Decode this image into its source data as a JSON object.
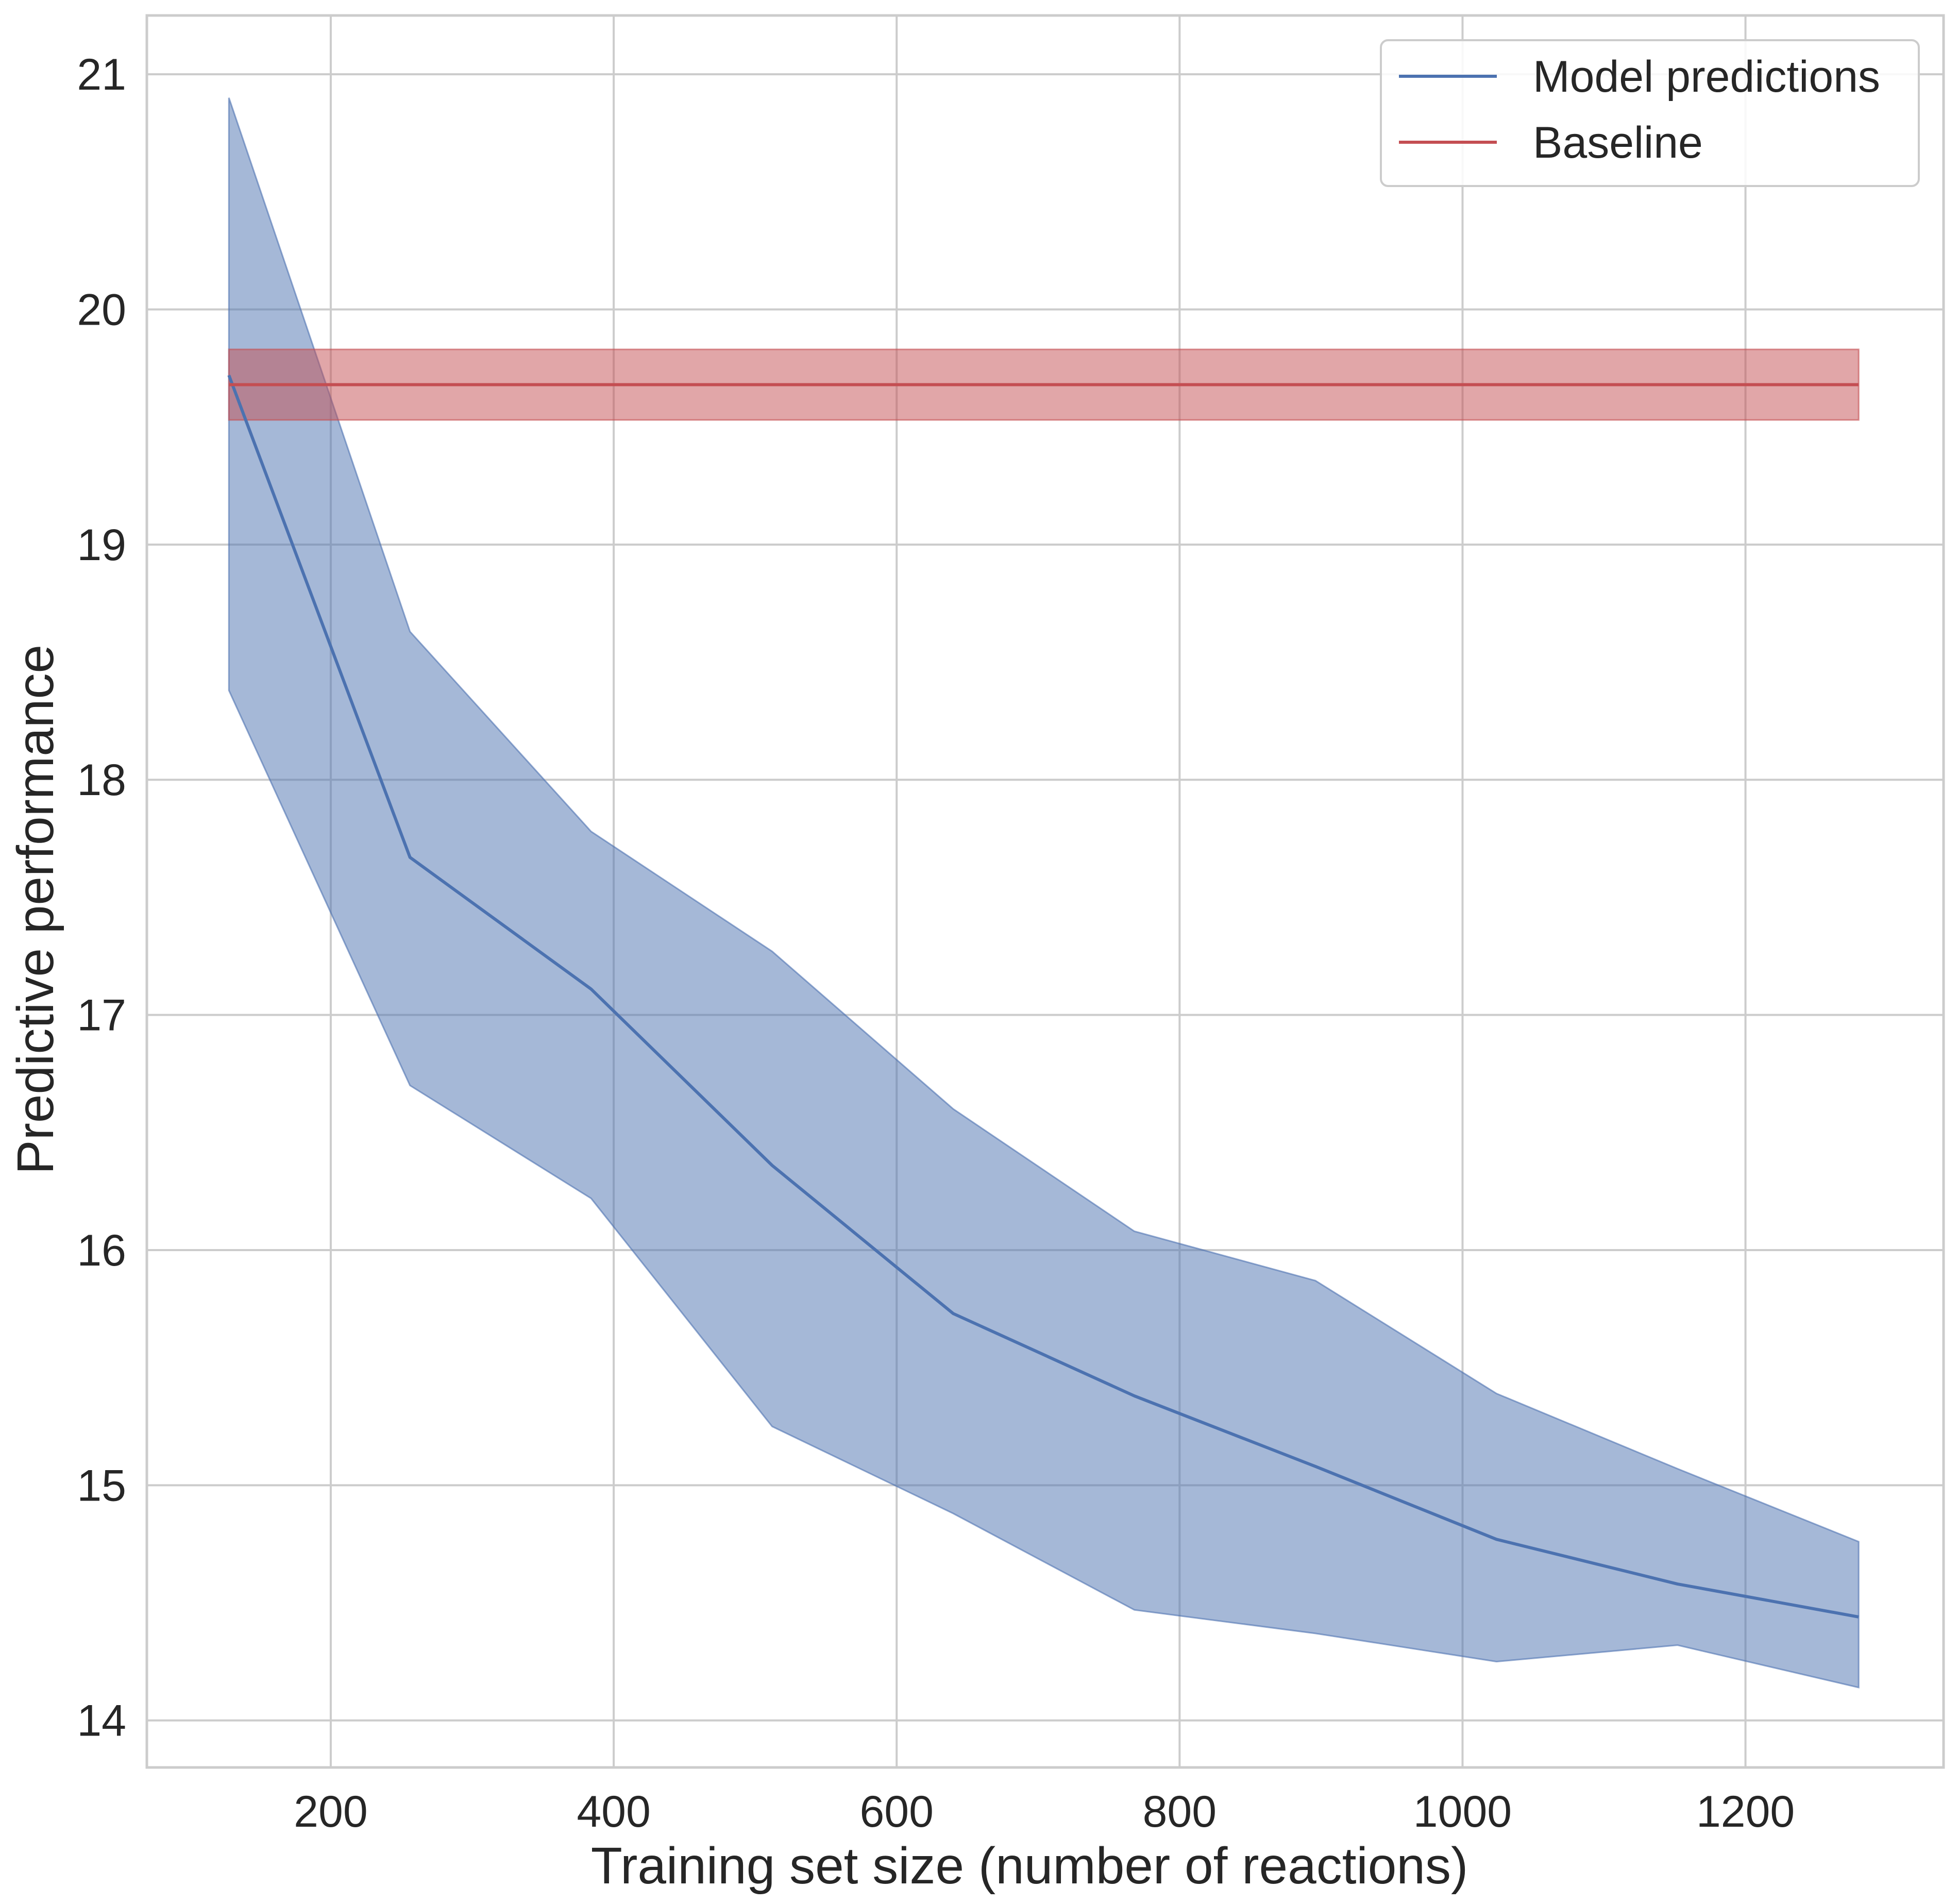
{
  "chart_data": {
    "type": "line",
    "title": "",
    "xlabel": "Training set size (number of reactions)",
    "ylabel": "Predictive performance",
    "xlim": [
      70,
      1340
    ],
    "ylim": [
      13.8,
      21.25
    ],
    "xticks": [
      200,
      400,
      600,
      800,
      1000,
      1200
    ],
    "yticks": [
      14,
      15,
      16,
      17,
      18,
      19,
      20,
      21
    ],
    "grid": true,
    "legend_position": "top-right",
    "series": [
      {
        "name": "Model predictions",
        "color": "#4c72b0",
        "band_color": "#4c72b0",
        "x": [
          128,
          256,
          384,
          512,
          640,
          768,
          896,
          1024,
          1152,
          1280
        ],
        "y": [
          19.72,
          17.67,
          17.11,
          16.36,
          15.73,
          15.38,
          15.08,
          14.77,
          14.58,
          14.44
        ],
        "lower": [
          18.38,
          16.7,
          16.22,
          15.25,
          14.88,
          14.47,
          14.37,
          14.25,
          14.32,
          14.14
        ],
        "upper": [
          20.9,
          18.63,
          17.78,
          17.27,
          16.6,
          16.08,
          15.87,
          15.39,
          15.07,
          14.76
        ]
      },
      {
        "name": "Baseline",
        "color": "#c44e52",
        "band_color": "#c44e52",
        "x": [
          128,
          1280
        ],
        "y": [
          19.68,
          19.68
        ],
        "lower": [
          19.53,
          19.53
        ],
        "upper": [
          19.83,
          19.83
        ]
      }
    ]
  }
}
